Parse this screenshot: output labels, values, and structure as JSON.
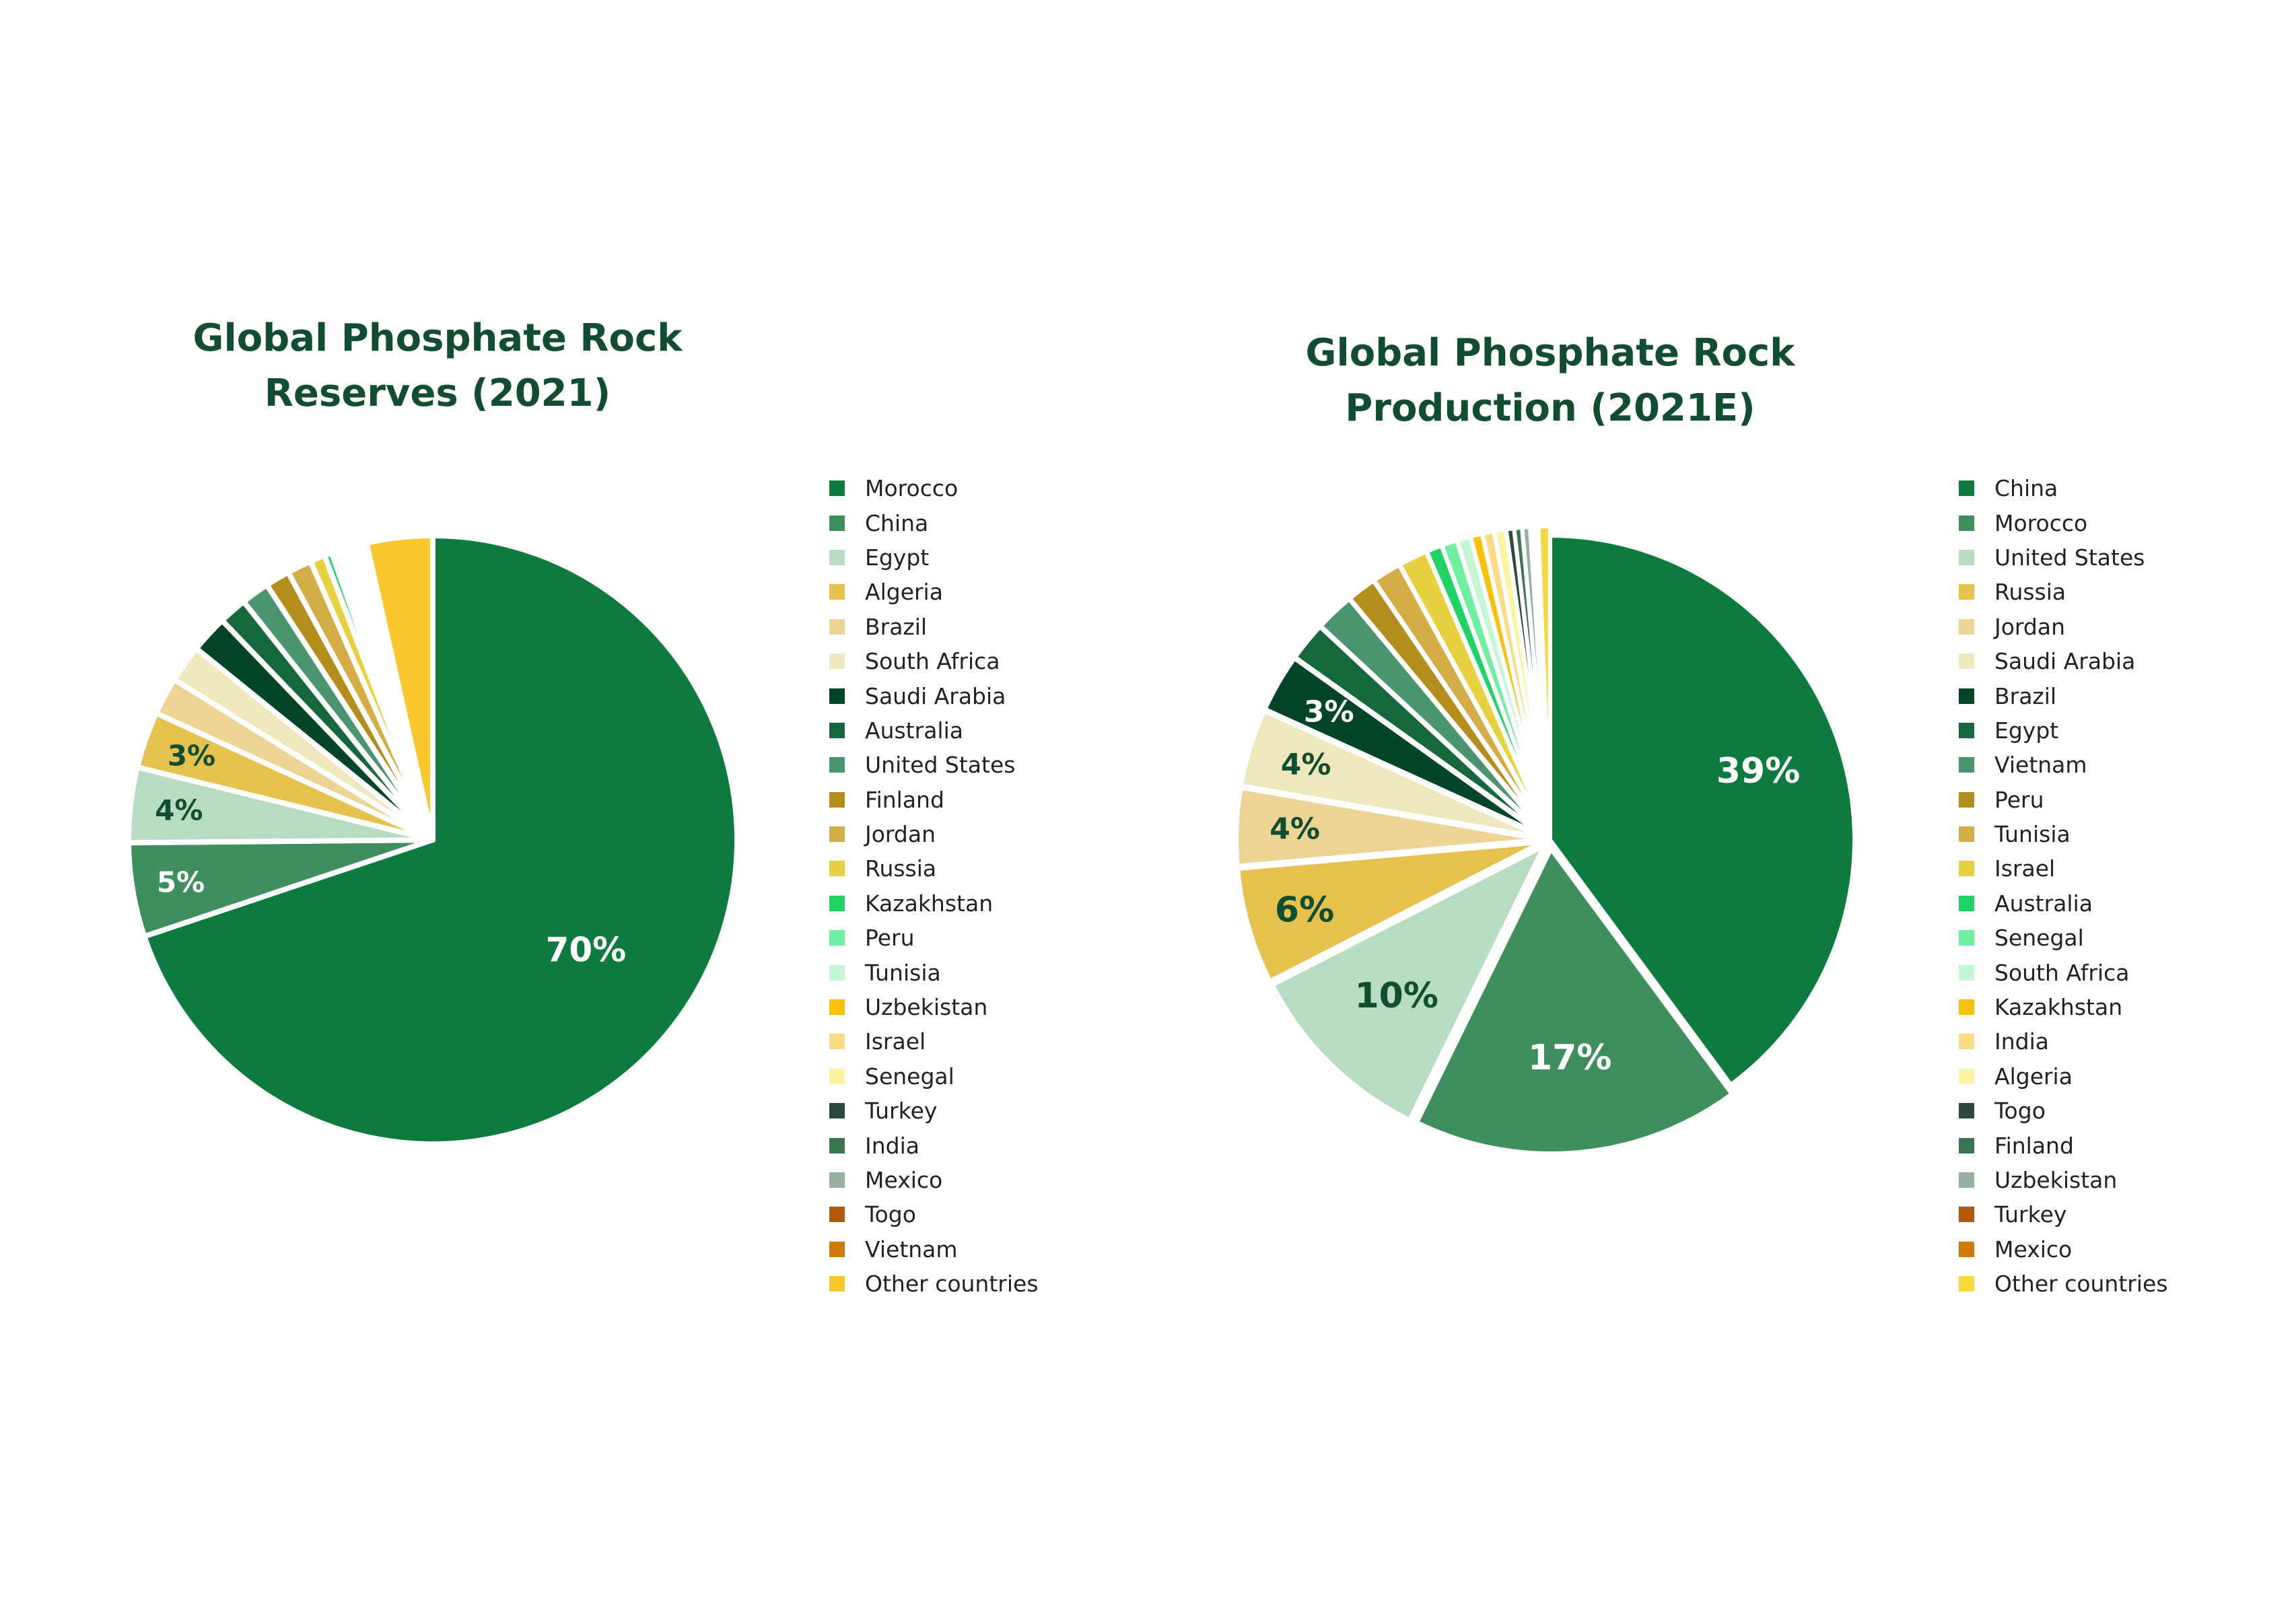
{
  "chart_data": [
    {
      "type": "pie",
      "title": [
        "Global Phosphate Rock",
        "Reserves (2021)"
      ],
      "legend_position": "right",
      "slices": [
        {
          "name": "Morocco",
          "value": 70,
          "label": "70%",
          "color": "#0d7a3e",
          "label_color": "#ffffff"
        },
        {
          "name": "China",
          "value": 5,
          "label": "5%",
          "color": "#3e8f5c",
          "label_color": "#ffffff"
        },
        {
          "name": "Egypt",
          "value": 4,
          "label": "4%",
          "color": "#b8dcc2",
          "label_color": "#114d30"
        },
        {
          "name": "Algeria",
          "value": 3,
          "label": "3%",
          "color": "#e6c14d",
          "label_color": "#114d30"
        },
        {
          "name": "Brazil",
          "value": 2,
          "label": "",
          "color": "#ebd494",
          "label_color": "#114d30"
        },
        {
          "name": "South Africa",
          "value": 2,
          "label": "",
          "color": "#eee8bc",
          "label_color": "#114d30"
        },
        {
          "name": "Saudi Arabia",
          "value": 2,
          "label": "",
          "color": "#034627",
          "label_color": "#ffffff"
        },
        {
          "name": "Australia",
          "value": 1.5,
          "label": "",
          "color": "#15683c",
          "label_color": "#ffffff"
        },
        {
          "name": "United States",
          "value": 1.5,
          "label": "",
          "color": "#4a9470",
          "label_color": "#ffffff"
        },
        {
          "name": "Finland",
          "value": 1.3,
          "label": "",
          "color": "#b38e1c",
          "label_color": "#ffffff"
        },
        {
          "name": "Jordan",
          "value": 1.3,
          "label": "",
          "color": "#d5ad46",
          "label_color": "#ffffff"
        },
        {
          "name": "Russia",
          "value": 0.8,
          "label": "",
          "color": "#e7d13f",
          "label_color": "#ffffff"
        },
        {
          "name": "Kazakhstan",
          "value": 0.4,
          "label": "",
          "color": "#1fd365",
          "label_color": "#ffffff"
        },
        {
          "name": "Peru",
          "value": 0.3,
          "label": "",
          "color": "#6ff0a0",
          "label_color": "#ffffff"
        },
        {
          "name": "Tunisia",
          "value": 0.3,
          "label": "",
          "color": "#c4f7d3",
          "label_color": "#ffffff"
        },
        {
          "name": "Uzbekistan",
          "value": 0.2,
          "label": "",
          "color": "#f9c00c",
          "label_color": "#ffffff"
        },
        {
          "name": "Israel",
          "value": 0.2,
          "label": "",
          "color": "#f9dc85",
          "label_color": "#ffffff"
        },
        {
          "name": "Senegal",
          "value": 0.2,
          "label": "",
          "color": "#fcf4a3",
          "label_color": "#ffffff"
        },
        {
          "name": "Turkey",
          "value": 0.15,
          "label": "",
          "color": "#2b4a3b",
          "label_color": "#ffffff"
        },
        {
          "name": "India",
          "value": 0.15,
          "label": "",
          "color": "#3b7551",
          "label_color": "#ffffff"
        },
        {
          "name": "Mexico",
          "value": 0.15,
          "label": "",
          "color": "#98b0a0",
          "label_color": "#ffffff"
        },
        {
          "name": "Togo",
          "value": 0.15,
          "label": "",
          "color": "#b35a07",
          "label_color": "#ffffff"
        },
        {
          "name": "Vietnam",
          "value": 0.1,
          "label": "",
          "color": "#d17a08",
          "label_color": "#ffffff"
        },
        {
          "name": "Other countries",
          "value": 3.5,
          "label": "",
          "color": "#fac82c",
          "label_color": "#ffffff"
        }
      ]
    },
    {
      "type": "pie",
      "title": [
        "Global Phosphate Rock",
        "Production (2021E)"
      ],
      "legend_position": "right",
      "slices": [
        {
          "name": "China",
          "value": 39,
          "label": "39%",
          "color": "#0d7a3e",
          "label_color": "#ffffff"
        },
        {
          "name": "Morocco",
          "value": 17,
          "label": "17%",
          "color": "#3e8f5c",
          "label_color": "#ffffff"
        },
        {
          "name": "United States",
          "value": 10,
          "label": "10%",
          "color": "#b8dcc2",
          "label_color": "#114d30"
        },
        {
          "name": "Russia",
          "value": 6,
          "label": "6%",
          "color": "#e6c14d",
          "label_color": "#114d30"
        },
        {
          "name": "Jordan",
          "value": 4,
          "label": "4%",
          "color": "#ebd494",
          "label_color": "#114d30"
        },
        {
          "name": "Saudi Arabia",
          "value": 4,
          "label": "4%",
          "color": "#eee8bc",
          "label_color": "#114d30"
        },
        {
          "name": "Brazil",
          "value": 3,
          "label": "3%",
          "color": "#034627",
          "label_color": "#ffffff"
        },
        {
          "name": "Egypt",
          "value": 2,
          "label": "",
          "color": "#15683c",
          "label_color": "#ffffff"
        },
        {
          "name": "Vietnam",
          "value": 2,
          "label": "",
          "color": "#4a9470",
          "label_color": "#ffffff"
        },
        {
          "name": "Peru",
          "value": 1.5,
          "label": "",
          "color": "#b38e1c",
          "label_color": "#ffffff"
        },
        {
          "name": "Tunisia",
          "value": 1.5,
          "label": "",
          "color": "#d5ad46",
          "label_color": "#ffffff"
        },
        {
          "name": "Israel",
          "value": 1.5,
          "label": "",
          "color": "#e7d13f",
          "label_color": "#ffffff"
        },
        {
          "name": "Australia",
          "value": 0.8,
          "label": "",
          "color": "#1fd365",
          "label_color": "#ffffff"
        },
        {
          "name": "Senegal",
          "value": 0.8,
          "label": "",
          "color": "#6ff0a0",
          "label_color": "#ffffff"
        },
        {
          "name": "South Africa",
          "value": 0.7,
          "label": "",
          "color": "#c4f7d3",
          "label_color": "#ffffff"
        },
        {
          "name": "Kazakhstan",
          "value": 0.6,
          "label": "",
          "color": "#f9c00c",
          "label_color": "#ffffff"
        },
        {
          "name": "India",
          "value": 0.6,
          "label": "",
          "color": "#f9dc85",
          "label_color": "#ffffff"
        },
        {
          "name": "Algeria",
          "value": 0.6,
          "label": "",
          "color": "#fcf4a3",
          "label_color": "#ffffff"
        },
        {
          "name": "Togo",
          "value": 0.4,
          "label": "",
          "color": "#2b4a3b",
          "label_color": "#ffffff"
        },
        {
          "name": "Finland",
          "value": 0.4,
          "label": "",
          "color": "#3b7551",
          "label_color": "#ffffff"
        },
        {
          "name": "Uzbekistan",
          "value": 0.4,
          "label": "",
          "color": "#98b0a0",
          "label_color": "#ffffff"
        },
        {
          "name": "Turkey",
          "value": 0.2,
          "label": "",
          "color": "#b35a07",
          "label_color": "#ffffff"
        },
        {
          "name": "Mexico",
          "value": 0.2,
          "label": "",
          "color": "#d17a08",
          "label_color": "#ffffff"
        },
        {
          "name": "Other countries",
          "value": 0.6,
          "label": "",
          "color": "#f5d93e",
          "label_color": "#ffffff"
        }
      ]
    }
  ]
}
